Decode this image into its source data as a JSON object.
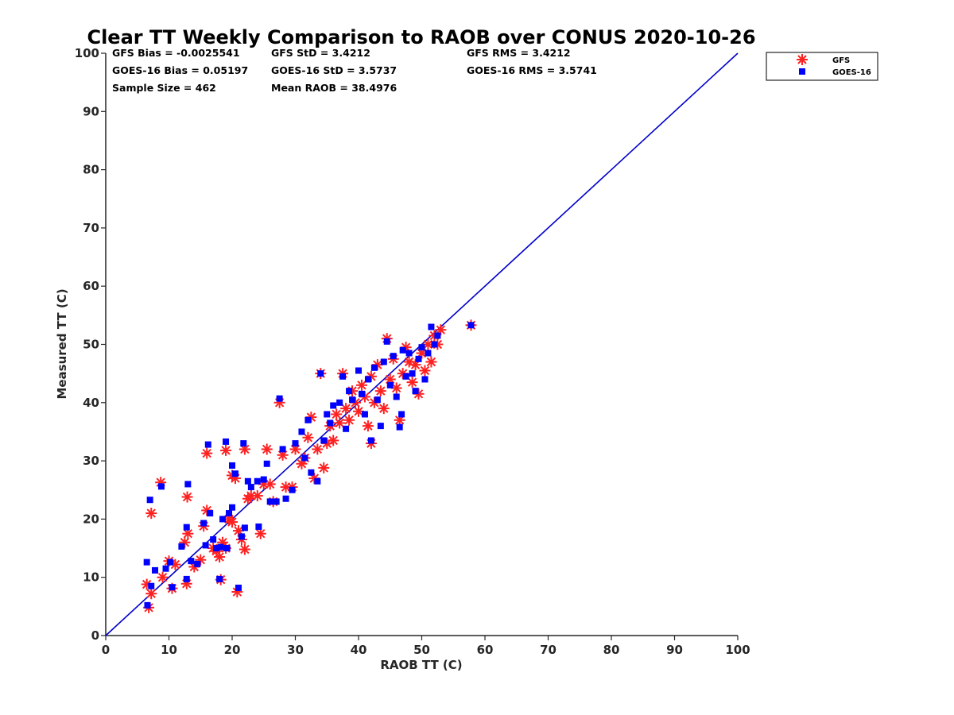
{
  "chart_data": {
    "type": "scatter",
    "title": "Clear TT Weekly Comparison to RAOB over CONUS 2020-10-26",
    "xlabel": "RAOB TT (C)",
    "ylabel": "Measured TT (C)",
    "xlim": [
      0,
      100
    ],
    "ylim": [
      0,
      100
    ],
    "xticks": [
      0,
      10,
      20,
      30,
      40,
      50,
      60,
      70,
      80,
      90,
      100
    ],
    "yticks": [
      0,
      10,
      20,
      30,
      40,
      50,
      60,
      70,
      80,
      90,
      100
    ],
    "grid": false,
    "legend_position": "top-right",
    "reference_line": {
      "name": "1:1 line",
      "x": [
        0,
        100
      ],
      "y": [
        0,
        100
      ],
      "color": "#0000cc"
    },
    "stats": [
      [
        "GFS Bias = -0.0025541",
        "GFS StD = 3.4212",
        "GFS RMS = 3.4212"
      ],
      [
        "GOES-16 Bias = 0.05197",
        "GOES-16 StD = 3.5737",
        "GOES-16 RMS = 3.5741"
      ],
      [
        "Sample Size = 462",
        "Mean RAOB = 38.4976"
      ]
    ],
    "series": [
      {
        "name": "GFS",
        "marker": "asterisk",
        "color": "#ff2020",
        "points": [
          [
            6.5,
            8.8
          ],
          [
            6.8,
            4.8
          ],
          [
            7.2,
            21.0
          ],
          [
            7.2,
            7.2
          ],
          [
            8.7,
            26.3
          ],
          [
            9.0,
            10.0
          ],
          [
            10.0,
            12.8
          ],
          [
            10.5,
            8.1
          ],
          [
            11.0,
            12.2
          ],
          [
            12.5,
            16.0
          ],
          [
            12.8,
            8.9
          ],
          [
            12.9,
            23.8
          ],
          [
            13.0,
            17.5
          ],
          [
            14.0,
            11.8
          ],
          [
            15.0,
            13.0
          ],
          [
            15.5,
            18.8
          ],
          [
            16.0,
            31.3
          ],
          [
            16.0,
            21.5
          ],
          [
            17.0,
            15.0
          ],
          [
            17.5,
            14.5
          ],
          [
            18.0,
            13.5
          ],
          [
            18.2,
            9.6
          ],
          [
            18.5,
            16.0
          ],
          [
            19.0,
            31.8
          ],
          [
            19.0,
            15.0
          ],
          [
            19.5,
            20.0
          ],
          [
            20.0,
            27.5
          ],
          [
            20.0,
            19.5
          ],
          [
            20.5,
            27.0
          ],
          [
            20.8,
            7.5
          ],
          [
            21.0,
            18.0
          ],
          [
            21.5,
            16.5
          ],
          [
            22.0,
            32.0
          ],
          [
            22.0,
            14.8
          ],
          [
            22.5,
            23.5
          ],
          [
            23.0,
            24.0
          ],
          [
            24.0,
            24.0
          ],
          [
            24.5,
            17.5
          ],
          [
            25.0,
            26.0
          ],
          [
            25.5,
            32.0
          ],
          [
            26.0,
            26.0
          ],
          [
            26.5,
            23.0
          ],
          [
            27.5,
            40.0
          ],
          [
            28.0,
            31.0
          ],
          [
            28.5,
            25.5
          ],
          [
            29.5,
            25.5
          ],
          [
            30.0,
            32.0
          ],
          [
            31.0,
            29.5
          ],
          [
            31.5,
            30.5
          ],
          [
            32.0,
            34.0
          ],
          [
            32.5,
            37.5
          ],
          [
            33.0,
            27.0
          ],
          [
            33.5,
            32.0
          ],
          [
            34.0,
            45.0
          ],
          [
            34.5,
            28.8
          ],
          [
            35.0,
            33.0
          ],
          [
            35.5,
            36.0
          ],
          [
            36.0,
            33.5
          ],
          [
            36.5,
            38.0
          ],
          [
            37.0,
            36.5
          ],
          [
            37.5,
            45.0
          ],
          [
            38.0,
            39.0
          ],
          [
            38.5,
            37.0
          ],
          [
            39.0,
            42.0
          ],
          [
            39.5,
            40.0
          ],
          [
            40.0,
            38.5
          ],
          [
            40.5,
            43.0
          ],
          [
            41.0,
            41.0
          ],
          [
            41.5,
            36.0
          ],
          [
            42.0,
            33.0
          ],
          [
            42.0,
            44.5
          ],
          [
            42.5,
            40.0
          ],
          [
            43.0,
            46.5
          ],
          [
            43.5,
            42.0
          ],
          [
            44.0,
            39.0
          ],
          [
            44.5,
            51.0
          ],
          [
            45.0,
            44.0
          ],
          [
            45.5,
            47.5
          ],
          [
            46.0,
            42.5
          ],
          [
            46.5,
            37.0
          ],
          [
            47.0,
            45.0
          ],
          [
            47.5,
            49.5
          ],
          [
            48.0,
            47.0
          ],
          [
            48.5,
            43.5
          ],
          [
            49.0,
            46.5
          ],
          [
            49.5,
            41.5
          ],
          [
            50.0,
            48.5
          ],
          [
            50.5,
            45.5
          ],
          [
            51.0,
            50.0
          ],
          [
            51.5,
            47.0
          ],
          [
            52.0,
            51.5
          ],
          [
            52.5,
            50.0
          ],
          [
            53.0,
            52.5
          ],
          [
            57.8,
            53.3
          ]
        ]
      },
      {
        "name": "GOES-16",
        "marker": "square",
        "color": "#0000ff",
        "points": [
          [
            6.5,
            12.6
          ],
          [
            6.6,
            5.2
          ],
          [
            7.0,
            23.3
          ],
          [
            7.2,
            8.5
          ],
          [
            7.8,
            11.2
          ],
          [
            8.8,
            25.6
          ],
          [
            9.5,
            11.5
          ],
          [
            10.2,
            12.6
          ],
          [
            10.5,
            8.3
          ],
          [
            12.0,
            15.3
          ],
          [
            12.8,
            18.6
          ],
          [
            12.8,
            9.7
          ],
          [
            13.0,
            26.0
          ],
          [
            13.5,
            12.8
          ],
          [
            14.5,
            12.3
          ],
          [
            15.5,
            19.3
          ],
          [
            15.8,
            15.5
          ],
          [
            16.2,
            32.8
          ],
          [
            16.5,
            21.0
          ],
          [
            17.0,
            16.5
          ],
          [
            17.5,
            15.0
          ],
          [
            18.0,
            9.7
          ],
          [
            18.2,
            15.2
          ],
          [
            18.5,
            20.0
          ],
          [
            19.0,
            33.3
          ],
          [
            19.2,
            15.0
          ],
          [
            19.5,
            21.0
          ],
          [
            20.0,
            29.2
          ],
          [
            20.0,
            22.0
          ],
          [
            20.5,
            27.8
          ],
          [
            21.0,
            8.2
          ],
          [
            21.5,
            17.0
          ],
          [
            21.8,
            33.0
          ],
          [
            22.0,
            18.5
          ],
          [
            22.5,
            26.5
          ],
          [
            23.0,
            25.5
          ],
          [
            24.0,
            26.5
          ],
          [
            24.2,
            18.7
          ],
          [
            25.0,
            26.8
          ],
          [
            25.5,
            29.5
          ],
          [
            26.0,
            23.0
          ],
          [
            27.0,
            23.0
          ],
          [
            27.5,
            40.7
          ],
          [
            28.0,
            32.0
          ],
          [
            28.5,
            23.5
          ],
          [
            29.5,
            25.0
          ],
          [
            30.0,
            33.0
          ],
          [
            31.0,
            35.0
          ],
          [
            31.5,
            30.5
          ],
          [
            32.0,
            37.0
          ],
          [
            32.5,
            28.0
          ],
          [
            33.5,
            26.5
          ],
          [
            34.0,
            45.0
          ],
          [
            34.5,
            33.5
          ],
          [
            35.0,
            38.0
          ],
          [
            35.5,
            36.5
          ],
          [
            36.0,
            39.5
          ],
          [
            37.0,
            40.0
          ],
          [
            37.5,
            44.5
          ],
          [
            38.0,
            35.5
          ],
          [
            38.5,
            42.0
          ],
          [
            39.0,
            40.5
          ],
          [
            40.0,
            45.5
          ],
          [
            40.5,
            41.5
          ],
          [
            41.0,
            38.0
          ],
          [
            41.5,
            44.0
          ],
          [
            42.0,
            33.5
          ],
          [
            42.5,
            46.0
          ],
          [
            43.0,
            40.5
          ],
          [
            43.5,
            36.0
          ],
          [
            44.0,
            47.0
          ],
          [
            44.5,
            50.5
          ],
          [
            45.0,
            43.0
          ],
          [
            45.5,
            48.0
          ],
          [
            46.0,
            41.0
          ],
          [
            46.5,
            35.8
          ],
          [
            46.8,
            38.0
          ],
          [
            47.0,
            49.0
          ],
          [
            47.5,
            44.5
          ],
          [
            48.0,
            48.5
          ],
          [
            48.5,
            45.0
          ],
          [
            49.0,
            42.0
          ],
          [
            49.5,
            47.5
          ],
          [
            50.0,
            49.5
          ],
          [
            50.5,
            44.0
          ],
          [
            51.0,
            48.5
          ],
          [
            51.5,
            53.0
          ],
          [
            52.0,
            50.0
          ],
          [
            52.5,
            51.5
          ],
          [
            57.8,
            53.3
          ]
        ]
      }
    ]
  }
}
